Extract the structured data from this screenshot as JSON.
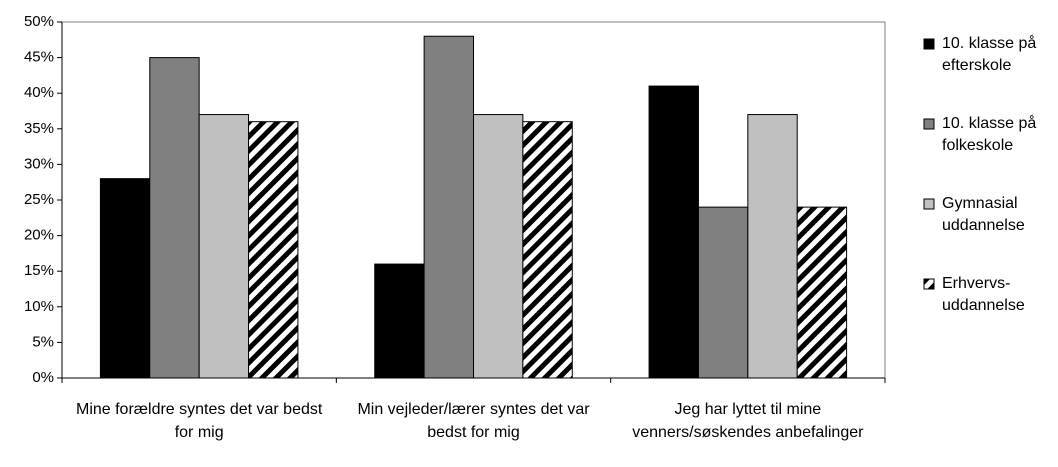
{
  "chart_data": {
    "type": "bar",
    "categories": [
      "Mine forældre syntes det var bedst for mig",
      "Min vejleder/lærer syntes det var bedst for mig",
      "Jeg har lyttet til mine venners/søskendes anbefalinger"
    ],
    "series": [
      {
        "name": "10. klasse på efterskole",
        "color": "#000000",
        "values": [
          28,
          16,
          41
        ]
      },
      {
        "name": "10. klasse på folkeskole",
        "color": "#808080",
        "values": [
          45,
          48,
          24
        ]
      },
      {
        "name": "Gymnasial uddannelse",
        "color": "#c0c0c0",
        "values": [
          37,
          37,
          37
        ]
      },
      {
        "name": "Erhvervs-uddannelse",
        "color": "#000000",
        "pattern": "diagonal-stripes",
        "values": [
          36,
          36,
          24
        ]
      }
    ],
    "ylim": [
      0,
      50
    ],
    "yticks": [
      {
        "value": 0,
        "label": "0%"
      },
      {
        "value": 5,
        "label": "5%"
      },
      {
        "value": 10,
        "label": "10%"
      },
      {
        "value": 15,
        "label": "15%"
      },
      {
        "value": 20,
        "label": "20%"
      },
      {
        "value": 25,
        "label": "25%"
      },
      {
        "value": 30,
        "label": "30%"
      },
      {
        "value": 35,
        "label": "35%"
      },
      {
        "value": 40,
        "label": "40%"
      },
      {
        "value": 45,
        "label": "45%"
      },
      {
        "value": 50,
        "label": "50%"
      }
    ],
    "grid": false,
    "legend": "right"
  }
}
